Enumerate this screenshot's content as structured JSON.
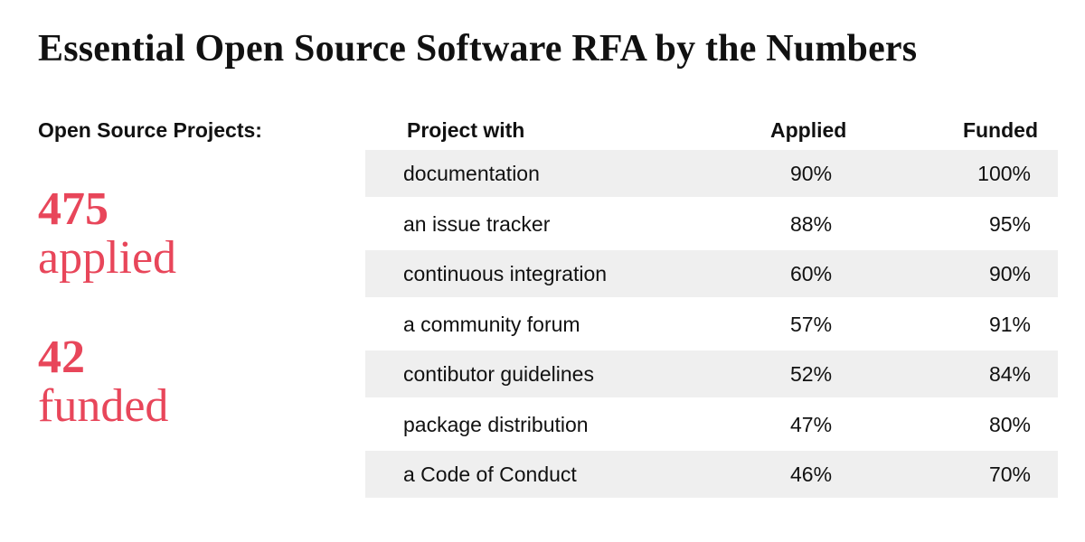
{
  "chart_data": {
    "type": "table",
    "title": "Essential Open Source Software RFA by the Numbers",
    "summary": {
      "label": "Open Source Projects:",
      "applied_count": "475",
      "applied_word": "applied",
      "funded_count": "42",
      "funded_word": "funded"
    },
    "columns": [
      "Project with",
      "Applied",
      "Funded"
    ],
    "rows": [
      {
        "project": "documentation",
        "applied": "90%",
        "funded": "100%"
      },
      {
        "project": "an issue tracker",
        "applied": "88%",
        "funded": "95%"
      },
      {
        "project": "continuous integration",
        "applied": "60%",
        "funded": "90%"
      },
      {
        "project": "a community forum",
        "applied": "57%",
        "funded": "91%"
      },
      {
        "project": "contibutor guidelines",
        "applied": "52%",
        "funded": "84%"
      },
      {
        "project": "package distribution",
        "applied": "47%",
        "funded": "80%"
      },
      {
        "project": "a Code of Conduct",
        "applied": "46%",
        "funded": "70%"
      }
    ],
    "colors": {
      "accent": "#e8465a",
      "row_shade": "#efefef",
      "text": "#111111"
    }
  }
}
